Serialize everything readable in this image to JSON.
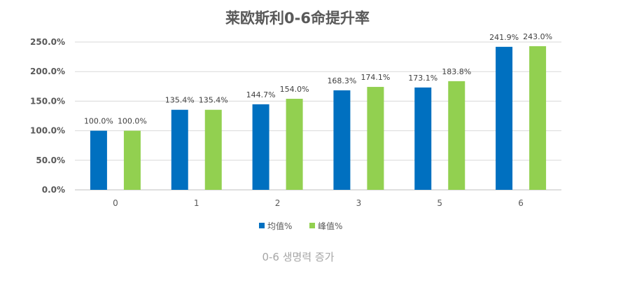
{
  "chart_data": {
    "type": "bar",
    "title": "莱欧斯利0-6命提升率",
    "categories": [
      "0",
      "1",
      "2",
      "3",
      "5",
      "6"
    ],
    "series": [
      {
        "name": "均值%",
        "values": [
          100.0,
          135.4,
          144.7,
          168.3,
          173.1,
          241.9
        ]
      },
      {
        "name": "峰值%",
        "values": [
          100.0,
          135.4,
          154.0,
          174.1,
          183.8,
          243.0
        ]
      }
    ],
    "data_labels": [
      [
        "100.0%",
        "135.4%",
        "144.7%",
        "168.3%",
        "173.1%",
        "241.9%"
      ],
      [
        "100.0%",
        "135.4%",
        "154.0%",
        "174.1%",
        "183.8%",
        "243.0%"
      ]
    ],
    "y_ticks": [
      "0.0%",
      "50.0%",
      "100.0%",
      "150.0%",
      "200.0%",
      "250.0%"
    ],
    "ylim": [
      0,
      250
    ],
    "grid": true,
    "legend_position": "bottom",
    "colors": [
      "#0070c0",
      "#92d050"
    ]
  },
  "caption": "0-6 생명력 증가"
}
